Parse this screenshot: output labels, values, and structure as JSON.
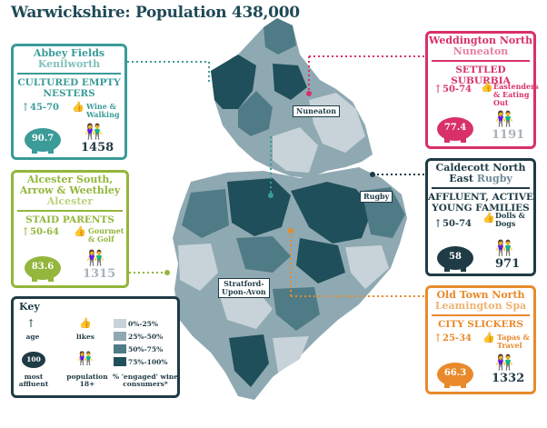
{
  "title": "Warwickshire: Population 438,000",
  "colors": {
    "teal": "#3a9b98",
    "green": "#93b63b",
    "pink": "#d8316a",
    "orange": "#e88a2c",
    "dark": "#1f3b45",
    "shade_0_25": "#c7d3d8",
    "shade_25_50": "#8fa9b2",
    "shade_50_75": "#4f7b86",
    "shade_75_100": "#1f4f5a"
  },
  "towns": {
    "nuneaton": "Nuneaton",
    "rugby": "Rugby",
    "stratford_line1": "Stratford-",
    "stratford_line2": "Upon-Avon"
  },
  "abbey": {
    "name": "Abbey Fields",
    "town": "Kenilworth",
    "segment_line1": "CULTURED EMPTY",
    "segment_line2": "NESTERS",
    "age": "45-70",
    "likes_line1": "Wine &",
    "likes_line2": "Walking",
    "index": "90.7",
    "population": "1458"
  },
  "weddington": {
    "name": "Weddington North",
    "town": "Nuneaton",
    "segment": "SETTLED SUBURBIA",
    "age": "50-74",
    "likes_line1": "Eastenders",
    "likes_line2": "& Eating",
    "likes_line3": "Out",
    "index": "77.4",
    "population": "1191"
  },
  "alcester": {
    "name_line1": "Alcester South,",
    "name_line2": "Arrow & Weethley",
    "town": "Alcester",
    "segment": "STAID PARENTS",
    "age": "50-64",
    "likes_line1": "Gourmet",
    "likes_line2": "& Golf",
    "index": "83.6",
    "population": "1315"
  },
  "caldecott": {
    "name_line1": "Caldecott North",
    "name_east": "East",
    "town": "Rugby",
    "segment_line1": "AFFLUENT, ACTIVE",
    "segment_line2": "YOUNG FAMILIES",
    "age": "50-74",
    "likes_line1": "Dolls &",
    "likes_line2": "Dogs",
    "index": "58",
    "population": "971"
  },
  "oldtown": {
    "name": "Old Town North",
    "town": "Leamington Spa",
    "segment": "CITY SLICKERS",
    "age": "25-34",
    "likes_line1": "Tapas &",
    "likes_line2": "Travel",
    "index": "66.3",
    "population": "1332"
  },
  "key": {
    "title": "Key",
    "age": "age",
    "likes": "likes",
    "pig_value": "100",
    "most_line1": "most",
    "most_line2": "affluent",
    "pop_line1": "population",
    "pop_line2": "18+",
    "range1": "0%-25%",
    "range2": "25%-50%",
    "range3": "50%-75%",
    "range4": "75%-100%",
    "engaged_line1": "% 'engaged' wine",
    "engaged_line2": "consumers*"
  }
}
